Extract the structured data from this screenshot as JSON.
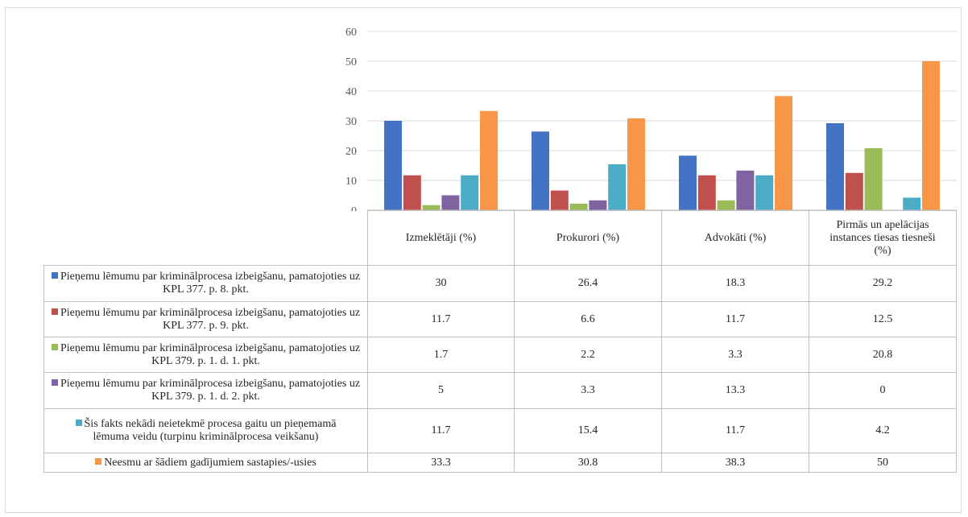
{
  "chart_data": {
    "type": "bar",
    "categories": [
      "Izmeklētāji (%)",
      "Prokurori (%)",
      "Advokāti (%)",
      "Pirmās un apelācijas instances tiesas tiesneši (%)"
    ],
    "series": [
      {
        "name": "Pieņemu lēmumu par kriminālprocesa izbeigšanu, pamatojoties uz KPL 377. p. 8. pkt.",
        "color": "#4472C4",
        "values": [
          30,
          26.4,
          18.3,
          29.2
        ]
      },
      {
        "name": "Pieņemu lēmumu par kriminālprocesa izbeigšanu, pamatojoties uz KPL 377. p. 9. pkt.",
        "color": "#C0504D",
        "values": [
          11.7,
          6.6,
          11.7,
          12.5
        ]
      },
      {
        "name": "Pieņemu lēmumu par kriminālprocesa izbeigšanu, pamatojoties uz KPL 379. p. 1. d. 1. pkt.",
        "color": "#9BBB59",
        "values": [
          1.7,
          2.2,
          3.3,
          20.8
        ]
      },
      {
        "name": "Pieņemu lēmumu par kriminālprocesa izbeigšanu, pamatojoties uz KPL 379. p. 1. d. 2. pkt.",
        "color": "#8064A2",
        "values": [
          5,
          3.3,
          13.3,
          0
        ]
      },
      {
        "name": "Šis fakts nekādi neietekmē procesa gaitu un pieņemamā lēmuma veidu (turpinu kriminālprocesa veikšanu)",
        "color": "#4BACC6",
        "values": [
          11.7,
          15.4,
          11.7,
          4.2
        ]
      },
      {
        "name": "Neesmu ar šādiem gadījumiem sastapies/-usies",
        "color": "#F79646",
        "values": [
          33.3,
          30.8,
          38.3,
          50
        ]
      }
    ],
    "value_labels": [
      [
        "30",
        "26.4",
        "18.3",
        "29.2"
      ],
      [
        "11.7",
        "6.6",
        "11.7",
        "12.5"
      ],
      [
        "1.7",
        "2.2",
        "3.3",
        "20.8"
      ],
      [
        "5",
        "3.3",
        "13.3",
        "0"
      ],
      [
        "11.7",
        "15.4",
        "11.7",
        "4.2"
      ],
      [
        "33.3",
        "30.8",
        "38.3",
        "50"
      ]
    ],
    "y_ticks": [
      "0",
      "10",
      "20",
      "30",
      "40",
      "50",
      "60"
    ],
    "ylim": [
      0,
      60
    ],
    "grid": true,
    "legend": "data-table"
  }
}
